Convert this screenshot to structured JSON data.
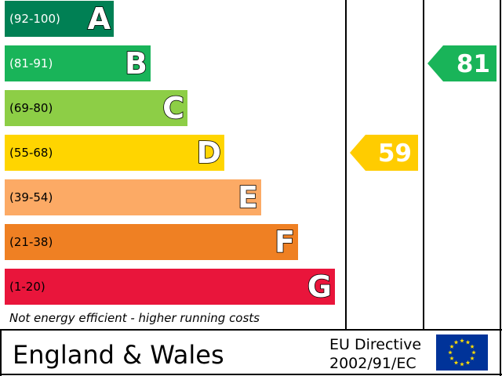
{
  "chart_data": {
    "type": "bar",
    "bands": [
      {
        "range": "(92-100)",
        "letter": "A",
        "color": "#008054",
        "range_color": "#ffffff"
      },
      {
        "range": "(81-91)",
        "letter": "B",
        "color": "#19b459",
        "range_color": "#ffffff"
      },
      {
        "range": "(69-80)",
        "letter": "C",
        "color": "#8dce46",
        "range_color": "#000000"
      },
      {
        "range": "(55-68)",
        "letter": "D",
        "color": "#ffd500",
        "range_color": "#000000"
      },
      {
        "range": "(39-54)",
        "letter": "E",
        "color": "#fcaa65",
        "range_color": "#000000"
      },
      {
        "range": "(21-38)",
        "letter": "F",
        "color": "#ef8023",
        "range_color": "#000000"
      },
      {
        "range": "(1-20)",
        "letter": "G",
        "color": "#e9153b",
        "range_color": "#000000"
      }
    ],
    "current": {
      "value": 59,
      "band": "D",
      "color": "#ffcc00"
    },
    "potential": {
      "value": 81,
      "band": "B",
      "color": "#19b459"
    }
  },
  "footnote": "Not energy efficient - higher running costs",
  "country": "England & Wales",
  "directive_line1": "EU Directive",
  "directive_line2": "2002/91/EC",
  "eu_flag": {
    "icon": "eu-flag-icon",
    "background": "#003399",
    "stars": "#ffdd00"
  }
}
